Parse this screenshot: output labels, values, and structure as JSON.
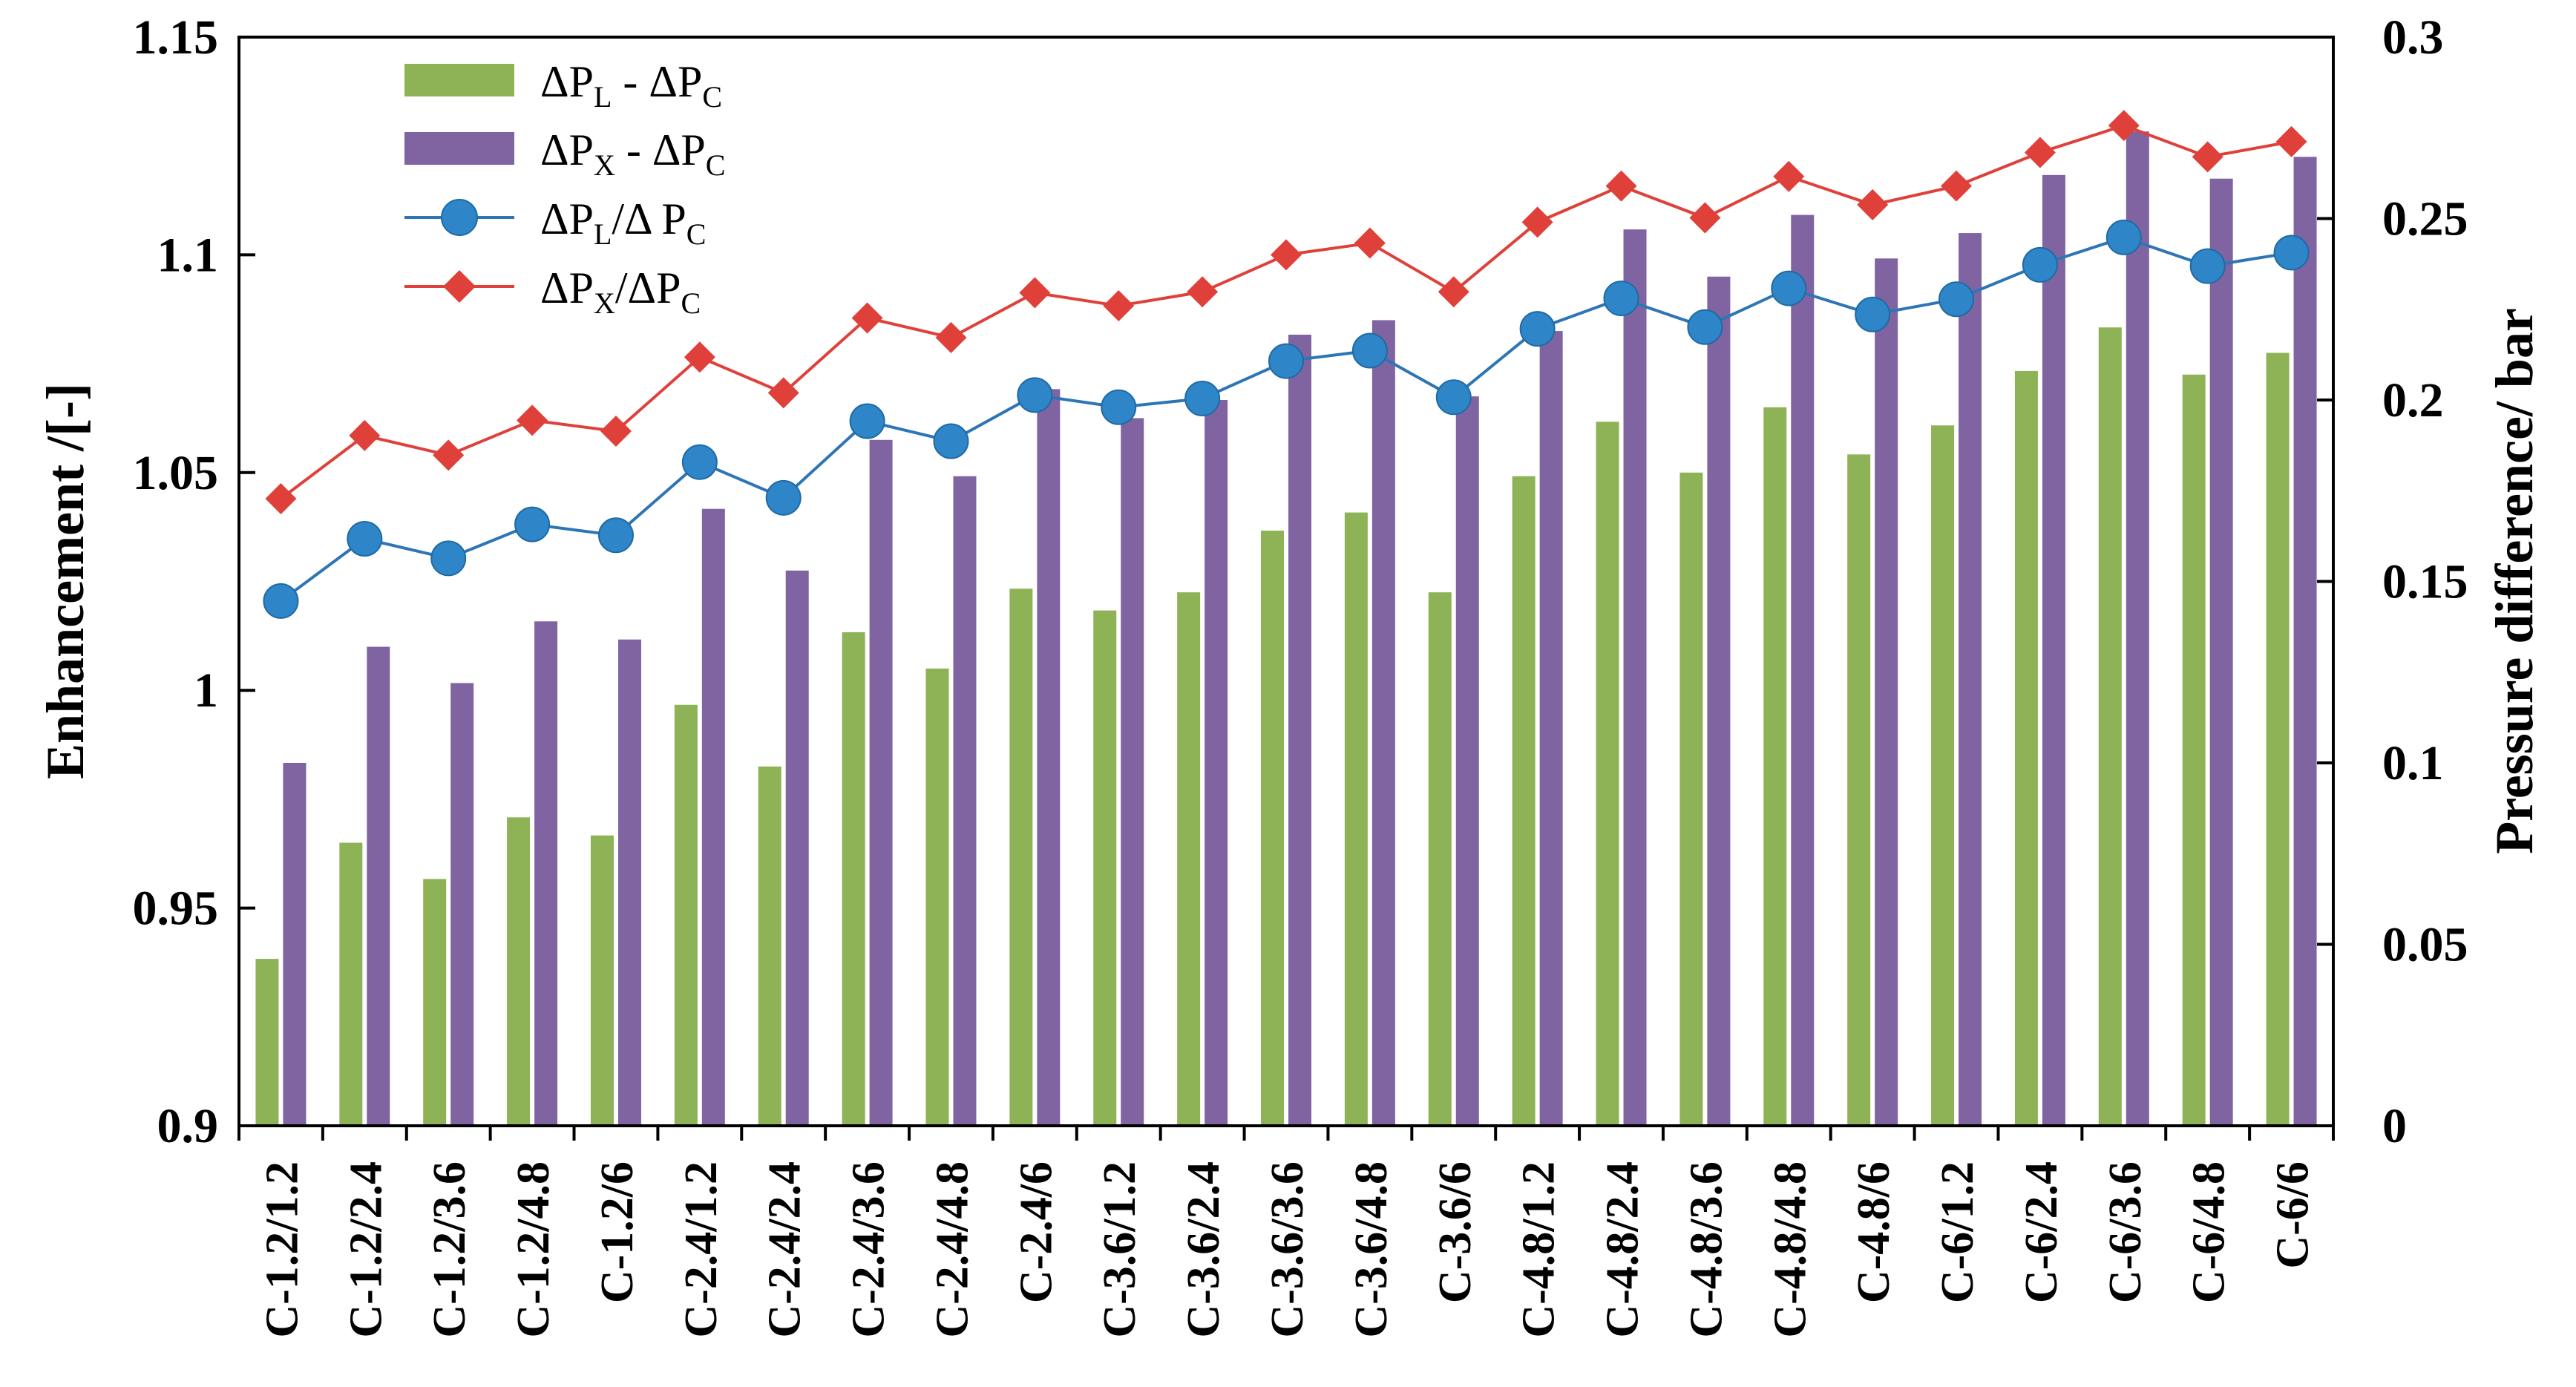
{
  "chart_data": {
    "type": "bar",
    "categories": [
      "C-1.2/1.2",
      "C-1.2/2.4",
      "C-1.2/3.6",
      "C-1.2/4.8",
      "C-1.2/6",
      "C-2.4/1.2",
      "C-2.4/2.4",
      "C-2.4/3.6",
      "C-2.4/4.8",
      "C-2.4/6",
      "C-3.6/1.2",
      "C-3.6/2.4",
      "C-3.6/3.6",
      "C-3.6/4.8",
      "C-3.6/6",
      "C-4.8/1.2",
      "C-4.8/2.4",
      "C-4.8/3.6",
      "C-4.8/4.8",
      "C-4.8/6",
      "C-6/1.2",
      "C-6/2.4",
      "C-6/3.6",
      "C-6/4.8",
      "C-6/6"
    ],
    "xlabel": "",
    "ylabel": "Enhancement /[-]",
    "y2label": "Pressure difference/ bar",
    "ylim": [
      0.9,
      1.15
    ],
    "y2lim": [
      0,
      0.3
    ],
    "yticks": [
      "0.9",
      "0.95",
      "1",
      "1.05",
      "1.1",
      "1.15"
    ],
    "y2ticks": [
      "0",
      "0.05",
      "0.1",
      "0.15",
      "0.2",
      "0.25",
      "0.3"
    ],
    "series": [
      {
        "name": "ΔPL - ΔPC",
        "label_parts": [
          "ΔP",
          "L",
          " - ΔP",
          "C"
        ],
        "kind": "bar",
        "axis": "right",
        "color": "#8db356",
        "values": [
          0.046,
          0.078,
          0.068,
          0.085,
          0.08,
          0.116,
          0.099,
          0.136,
          0.126,
          0.148,
          0.142,
          0.147,
          0.164,
          0.169,
          0.147,
          0.179,
          0.194,
          0.18,
          0.198,
          0.185,
          0.193,
          0.208,
          0.22,
          0.207,
          0.213
        ]
      },
      {
        "name": "ΔPX - ΔPC",
        "label_parts": [
          "ΔP",
          "X",
          " - ΔP",
          "C"
        ],
        "kind": "bar",
        "axis": "right",
        "color": "#8064a2",
        "values": [
          0.1,
          0.132,
          0.122,
          0.139,
          0.134,
          0.17,
          0.153,
          0.189,
          0.179,
          0.203,
          0.195,
          0.2,
          0.218,
          0.222,
          0.201,
          0.219,
          0.247,
          0.234,
          0.251,
          0.239,
          0.246,
          0.262,
          0.274,
          0.261,
          0.267
        ]
      },
      {
        "name": "ΔPL/ΔPC",
        "label_parts": [
          "ΔP",
          "L",
          "/Δ P",
          "C"
        ],
        "kind": "line",
        "marker": "circle",
        "axis": "left",
        "color": "#2e75b6",
        "marker_color": "#2e86c8",
        "values": [
          1.0205,
          1.0348,
          1.0303,
          1.0381,
          1.0356,
          1.0524,
          1.0442,
          1.0618,
          1.0572,
          1.0678,
          1.065,
          1.067,
          1.0756,
          1.078,
          1.0673,
          1.083,
          1.09,
          1.0834,
          1.0923,
          1.0863,
          1.0898,
          1.0977,
          1.104,
          1.0974,
          1.1005
        ]
      },
      {
        "name": "ΔPX/ΔPC",
        "label_parts": [
          "ΔP",
          "X",
          "/ΔP",
          "C"
        ],
        "kind": "line",
        "marker": "diamond",
        "axis": "left",
        "color": "#e0403a",
        "marker_color": "#e0403a",
        "values": [
          1.044,
          1.0585,
          1.054,
          1.062,
          1.0595,
          1.0765,
          1.0683,
          1.0855,
          1.081,
          1.0913,
          1.0883,
          1.0915,
          1.1,
          1.1027,
          1.0915,
          1.1075,
          1.1158,
          1.1085,
          1.118,
          1.1115,
          1.1158,
          1.1235,
          1.1297,
          1.1225,
          1.126
        ]
      }
    ],
    "legend": "top-left",
    "grid": false
  }
}
